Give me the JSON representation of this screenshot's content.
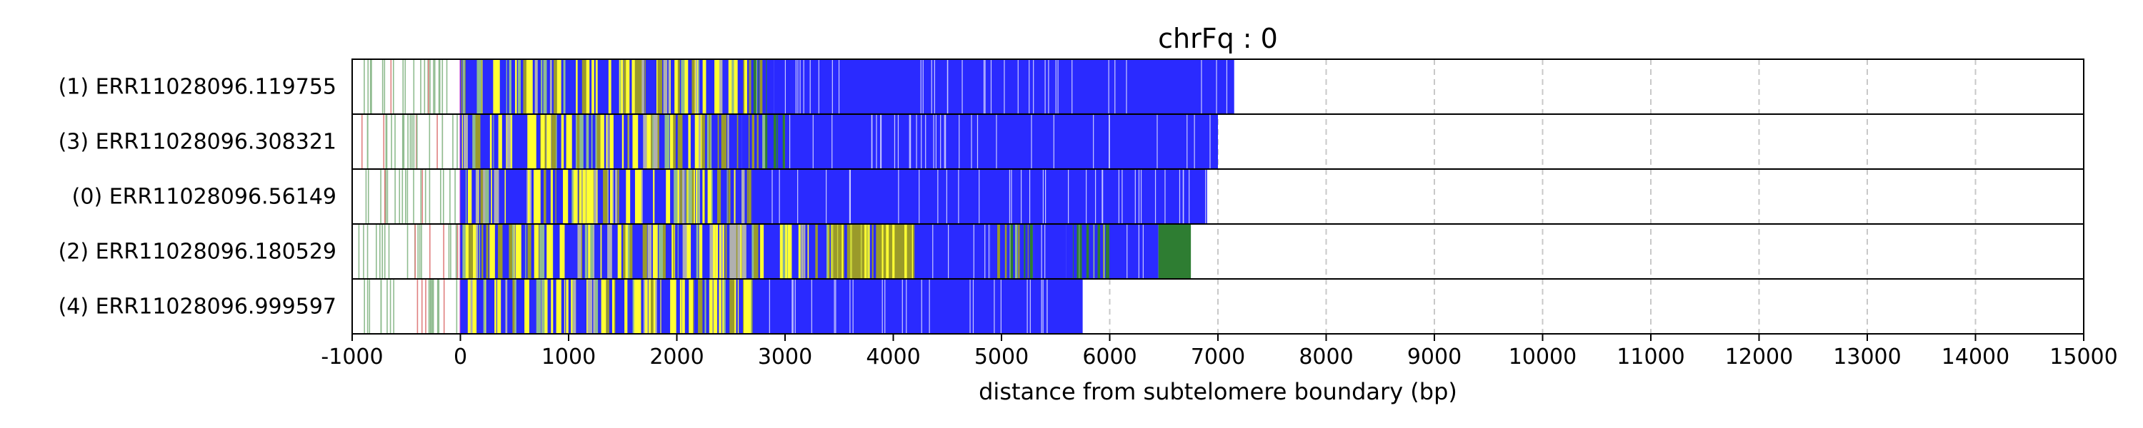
{
  "chart_data": {
    "type": "bar",
    "title": "chrFq : 0",
    "xlabel": "distance from subtelomere boundary (bp)",
    "ylabel": "",
    "xlim": [
      -1000,
      15000
    ],
    "xticks": [
      "-1000",
      "0",
      "1000",
      "2000",
      "3000",
      "4000",
      "5000",
      "6000",
      "7000",
      "8000",
      "9000",
      "10000",
      "11000",
      "12000",
      "13000",
      "14000",
      "15000"
    ],
    "grid": "vertical dashed",
    "colors": {
      "blue": "#2a2aff",
      "yellow": "#ffff33",
      "green": "#2e7d32",
      "light_green": "#8fbc8f",
      "olive": "#9a9a2a",
      "pink": "#e08080",
      "magenta": "#cc33cc",
      "frame": "#000000",
      "grid": "#c8c8c8"
    },
    "reads": [
      {
        "label": "(1) ERR11028096.119755",
        "end": 7150,
        "segments": [
          {
            "start": 0,
            "end": 2650,
            "color": "mixed"
          },
          {
            "start": 2650,
            "end": 2900,
            "color": "mixed-green"
          },
          {
            "start": 2900,
            "end": 7150,
            "color": "blue"
          }
        ]
      },
      {
        "label": "(3) ERR11028096.308321",
        "end": 7000,
        "segments": [
          {
            "start": 0,
            "end": 2600,
            "color": "mixed"
          },
          {
            "start": 2600,
            "end": 3000,
            "color": "mixed-green"
          },
          {
            "start": 3000,
            "end": 7000,
            "color": "blue"
          }
        ]
      },
      {
        "label": "(0) ERR11028096.56149",
        "end": 6900,
        "segments": [
          {
            "start": 0,
            "end": 2700,
            "color": "mixed"
          },
          {
            "start": 2700,
            "end": 6900,
            "color": "blue"
          }
        ]
      },
      {
        "label": "(2) ERR11028096.180529",
        "end": 6750,
        "segments": [
          {
            "start": 0,
            "end": 3400,
            "color": "mixed"
          },
          {
            "start": 3400,
            "end": 4200,
            "color": "yellow-green"
          },
          {
            "start": 4200,
            "end": 4900,
            "color": "blue"
          },
          {
            "start": 4900,
            "end": 5300,
            "color": "mixed-green"
          },
          {
            "start": 5300,
            "end": 5600,
            "color": "blue"
          },
          {
            "start": 5600,
            "end": 6000,
            "color": "mixed-green"
          },
          {
            "start": 6000,
            "end": 6450,
            "color": "blue"
          },
          {
            "start": 6450,
            "end": 6750,
            "color": "green"
          }
        ]
      },
      {
        "label": "(4) ERR11028096.999597",
        "end": 5750,
        "segments": [
          {
            "start": 0,
            "end": 2700,
            "color": "mixed"
          },
          {
            "start": 2700,
            "end": 5750,
            "color": "blue"
          }
        ]
      }
    ]
  }
}
